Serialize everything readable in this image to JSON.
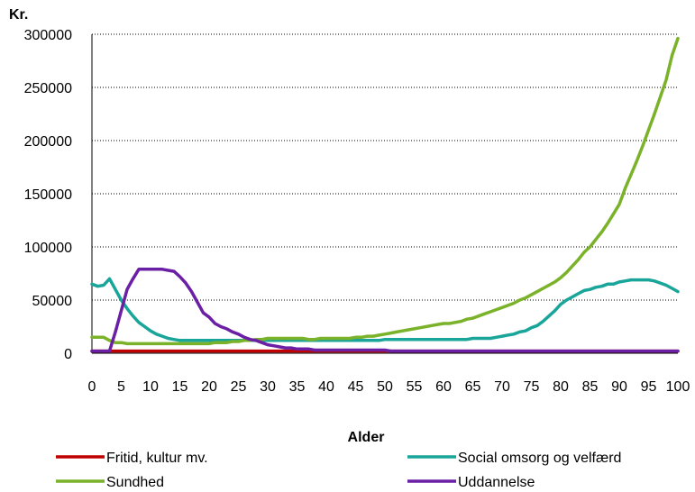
{
  "chart_data": {
    "type": "line",
    "ylabel": "Kr.",
    "xlabel": "Alder",
    "xlim": [
      0,
      100
    ],
    "ylim": [
      0,
      300000
    ],
    "x_ticks": [
      0,
      5,
      10,
      15,
      20,
      25,
      30,
      35,
      40,
      45,
      50,
      55,
      60,
      65,
      70,
      75,
      80,
      85,
      90,
      95,
      100
    ],
    "y_ticks": [
      0,
      50000,
      100000,
      150000,
      200000,
      250000,
      300000
    ],
    "grid": "horizontal dotted",
    "legend_position": "bottom",
    "x": [
      0,
      1,
      2,
      3,
      4,
      5,
      6,
      7,
      8,
      9,
      10,
      11,
      12,
      13,
      14,
      15,
      16,
      17,
      18,
      19,
      20,
      21,
      22,
      23,
      24,
      25,
      26,
      27,
      28,
      29,
      30,
      31,
      32,
      33,
      34,
      35,
      36,
      37,
      38,
      39,
      40,
      41,
      42,
      43,
      44,
      45,
      46,
      47,
      48,
      49,
      50,
      51,
      52,
      53,
      54,
      55,
      56,
      57,
      58,
      59,
      60,
      61,
      62,
      63,
      64,
      65,
      66,
      67,
      68,
      69,
      70,
      71,
      72,
      73,
      74,
      75,
      76,
      77,
      78,
      79,
      80,
      81,
      82,
      83,
      84,
      85,
      86,
      87,
      88,
      89,
      90,
      91,
      92,
      93,
      94,
      95,
      96,
      97,
      98,
      99,
      100
    ],
    "series": [
      {
        "name": "Fritid, kultur mv.",
        "color": "#c00000",
        "values": [
          2000,
          2000,
          2000,
          2000,
          2000,
          2000,
          2000,
          2000,
          2000,
          2000,
          2000,
          2000,
          2000,
          2000,
          2000,
          2000,
          2000,
          2000,
          2000,
          2000,
          2000,
          2000,
          2000,
          2000,
          2000,
          2000,
          2000,
          2000,
          2000,
          2000,
          2000,
          2000,
          2000,
          2000,
          2000,
          2000,
          2000,
          2000,
          2000,
          2000,
          2000,
          2000,
          2000,
          2000,
          2000,
          2000,
          2000,
          2000,
          2000,
          2000,
          2000,
          2000,
          2000,
          2000,
          2000,
          2000,
          2000,
          2000,
          2000,
          2000,
          2000,
          2000,
          2000,
          2000,
          2000,
          2000,
          2000,
          2000,
          2000,
          2000,
          2000,
          2000,
          2000,
          2000,
          2000,
          2000,
          2000,
          2000,
          2000,
          2000,
          2000,
          2000,
          2000,
          2000,
          2000,
          2000,
          2000,
          2000,
          2000,
          2000,
          2000,
          2000,
          2000,
          2000,
          2000,
          2000,
          2000,
          2000,
          2000,
          2000,
          2000
        ]
      },
      {
        "name": "Social omsorg og velfærd",
        "color": "#1aa59a",
        "values": [
          65000,
          63000,
          64000,
          70000,
          60000,
          50000,
          42000,
          35000,
          29000,
          25000,
          21000,
          18000,
          16000,
          14000,
          13000,
          12000,
          12000,
          12000,
          12000,
          12000,
          12000,
          12000,
          12000,
          12000,
          12000,
          12000,
          12000,
          12000,
          12000,
          12000,
          12000,
          12000,
          12000,
          12000,
          12000,
          12000,
          12000,
          12000,
          12000,
          12000,
          12000,
          12000,
          12000,
          12000,
          12000,
          12000,
          12000,
          12000,
          12000,
          12000,
          13000,
          13000,
          13000,
          13000,
          13000,
          13000,
          13000,
          13000,
          13000,
          13000,
          13000,
          13000,
          13000,
          13000,
          13000,
          14000,
          14000,
          14000,
          14000,
          15000,
          16000,
          17000,
          18000,
          20000,
          21000,
          24000,
          26000,
          30000,
          35000,
          40000,
          46000,
          50000,
          53000,
          56000,
          59000,
          60000,
          62000,
          63000,
          65000,
          65000,
          67000,
          68000,
          69000,
          69000,
          69000,
          69000,
          68000,
          66000,
          64000,
          61000,
          58000
        ]
      },
      {
        "name": "Sundhed",
        "color": "#7ab22a",
        "values": [
          15000,
          15000,
          15000,
          12000,
          10000,
          10000,
          9000,
          9000,
          9000,
          9000,
          9000,
          9000,
          9000,
          9000,
          9000,
          9000,
          9000,
          9000,
          9000,
          9000,
          9000,
          10000,
          10000,
          10000,
          11000,
          11000,
          12000,
          12000,
          13000,
          13000,
          14000,
          14000,
          14000,
          14000,
          14000,
          14000,
          14000,
          13000,
          13000,
          14000,
          14000,
          14000,
          14000,
          14000,
          14000,
          15000,
          15000,
          16000,
          16000,
          17000,
          18000,
          19000,
          20000,
          21000,
          22000,
          23000,
          24000,
          25000,
          26000,
          27000,
          28000,
          28000,
          29000,
          30000,
          32000,
          33000,
          35000,
          37000,
          39000,
          41000,
          43000,
          45000,
          47000,
          50000,
          52000,
          55000,
          58000,
          61000,
          64000,
          67000,
          71000,
          76000,
          82000,
          88000,
          95000,
          100000,
          107000,
          114000,
          122000,
          131000,
          140000,
          155000,
          168000,
          181000,
          195000,
          210000,
          225000,
          241000,
          257000,
          280000,
          296000
        ]
      },
      {
        "name": "Uddannelse",
        "color": "#6a1fa5",
        "values": [
          2000,
          2000,
          2000,
          2000,
          20000,
          40000,
          60000,
          70000,
          79000,
          79000,
          79000,
          79000,
          79000,
          78000,
          77000,
          72000,
          66000,
          58000,
          48000,
          38000,
          34000,
          28000,
          25000,
          23000,
          20000,
          18000,
          15000,
          13000,
          12000,
          10000,
          8000,
          7000,
          6000,
          5000,
          5000,
          4000,
          4000,
          4000,
          3000,
          3000,
          3000,
          3000,
          3000,
          3000,
          3000,
          3000,
          3000,
          3000,
          3000,
          3000,
          3000,
          2000,
          2000,
          2000,
          2000,
          2000,
          2000,
          2000,
          2000,
          2000,
          2000,
          2000,
          2000,
          2000,
          2000,
          2000,
          2000,
          2000,
          2000,
          2000,
          2000,
          2000,
          2000,
          2000,
          2000,
          2000,
          2000,
          2000,
          2000,
          2000,
          2000,
          2000,
          2000,
          2000,
          2000,
          2000,
          2000,
          2000,
          2000,
          2000,
          2000,
          2000,
          2000,
          2000,
          2000,
          2000,
          2000,
          2000,
          2000,
          2000,
          2000
        ]
      }
    ]
  }
}
